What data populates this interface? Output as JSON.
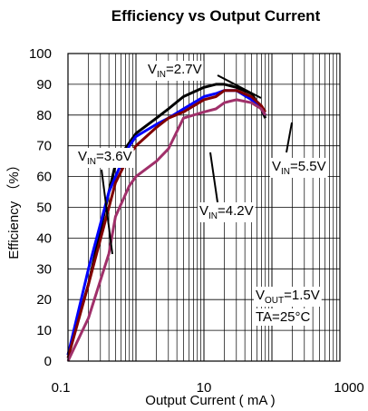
{
  "chart_data": {
    "type": "line",
    "title": "Efficiency vs Output Current",
    "xlabel": "Output Current ( mA )",
    "ylabel": "Efficiency （%）",
    "xscale": "log",
    "xlim": [
      0.1,
      1000
    ],
    "ylim": [
      0,
      100
    ],
    "grid": true,
    "x_ticks": [
      {
        "value": 0.1,
        "label": "0.1"
      },
      {
        "value": 10,
        "label": "10"
      },
      {
        "value": 1000,
        "label": "1000"
      }
    ],
    "y_ticks": [
      0,
      10,
      20,
      30,
      40,
      50,
      60,
      70,
      80,
      90,
      100
    ],
    "series": [
      {
        "name": "VIN=2.7V",
        "color": "#000000",
        "points": [
          [
            0.1,
            2
          ],
          [
            0.2,
            25
          ],
          [
            0.4,
            55
          ],
          [
            0.5,
            64
          ],
          [
            0.6,
            67
          ],
          [
            0.8,
            71
          ],
          [
            1,
            74
          ],
          [
            2,
            79
          ],
          [
            3,
            82
          ],
          [
            5,
            86
          ],
          [
            10,
            89
          ],
          [
            15,
            90
          ],
          [
            20,
            90
          ],
          [
            30,
            89
          ],
          [
            50,
            87
          ],
          [
            70,
            82
          ],
          [
            80,
            79
          ]
        ]
      },
      {
        "name": "VIN=3.6V",
        "color": "#0000ff",
        "points": [
          [
            0.1,
            2
          ],
          [
            0.2,
            30
          ],
          [
            0.4,
            55
          ],
          [
            0.6,
            64
          ],
          [
            0.8,
            70
          ],
          [
            1,
            73
          ],
          [
            2,
            77
          ],
          [
            3,
            79
          ],
          [
            5,
            82
          ],
          [
            10,
            86
          ],
          [
            15,
            87
          ],
          [
            20,
            88
          ],
          [
            30,
            88
          ],
          [
            50,
            85
          ],
          [
            70,
            82
          ],
          [
            80,
            80
          ]
        ]
      },
      {
        "name": "VIN=4.2V",
        "color": "#800000",
        "points": [
          [
            0.1,
            1
          ],
          [
            0.2,
            25
          ],
          [
            0.4,
            50
          ],
          [
            0.5,
            58
          ],
          [
            0.8,
            67
          ],
          [
            1,
            70
          ],
          [
            2,
            76
          ],
          [
            3,
            79
          ],
          [
            5,
            81
          ],
          [
            10,
            85
          ],
          [
            15,
            86
          ],
          [
            20,
            88
          ],
          [
            30,
            88
          ],
          [
            50,
            86
          ],
          [
            70,
            83
          ],
          [
            80,
            81
          ]
        ]
      },
      {
        "name": "VIN=5.5V",
        "color": "#a0306a",
        "points": [
          [
            0.1,
            0
          ],
          [
            0.2,
            14
          ],
          [
            0.4,
            35
          ],
          [
            0.5,
            47
          ],
          [
            0.8,
            57
          ],
          [
            1,
            60
          ],
          [
            2,
            65
          ],
          [
            3,
            69
          ],
          [
            5,
            79
          ],
          [
            10,
            81
          ],
          [
            15,
            82
          ],
          [
            20,
            84
          ],
          [
            30,
            85
          ],
          [
            50,
            84
          ],
          [
            70,
            82
          ],
          [
            80,
            80
          ]
        ]
      }
    ],
    "annotations": [
      {
        "id": "v27",
        "main": "V",
        "sub": "IN",
        "rest": "=2.7V"
      },
      {
        "id": "v36",
        "main": "V",
        "sub": "IN",
        "rest": "=3.6V"
      },
      {
        "id": "v42",
        "main": "V",
        "sub": "IN",
        "rest": "=4.2V"
      },
      {
        "id": "v55",
        "main": "V",
        "sub": "IN",
        "rest": "=5.5V"
      },
      {
        "id": "vout",
        "main": "V",
        "sub": "OUT",
        "rest": "=1.5V"
      },
      {
        "id": "ta",
        "main": "TA=25°C",
        "sub": "",
        "rest": ""
      }
    ]
  }
}
